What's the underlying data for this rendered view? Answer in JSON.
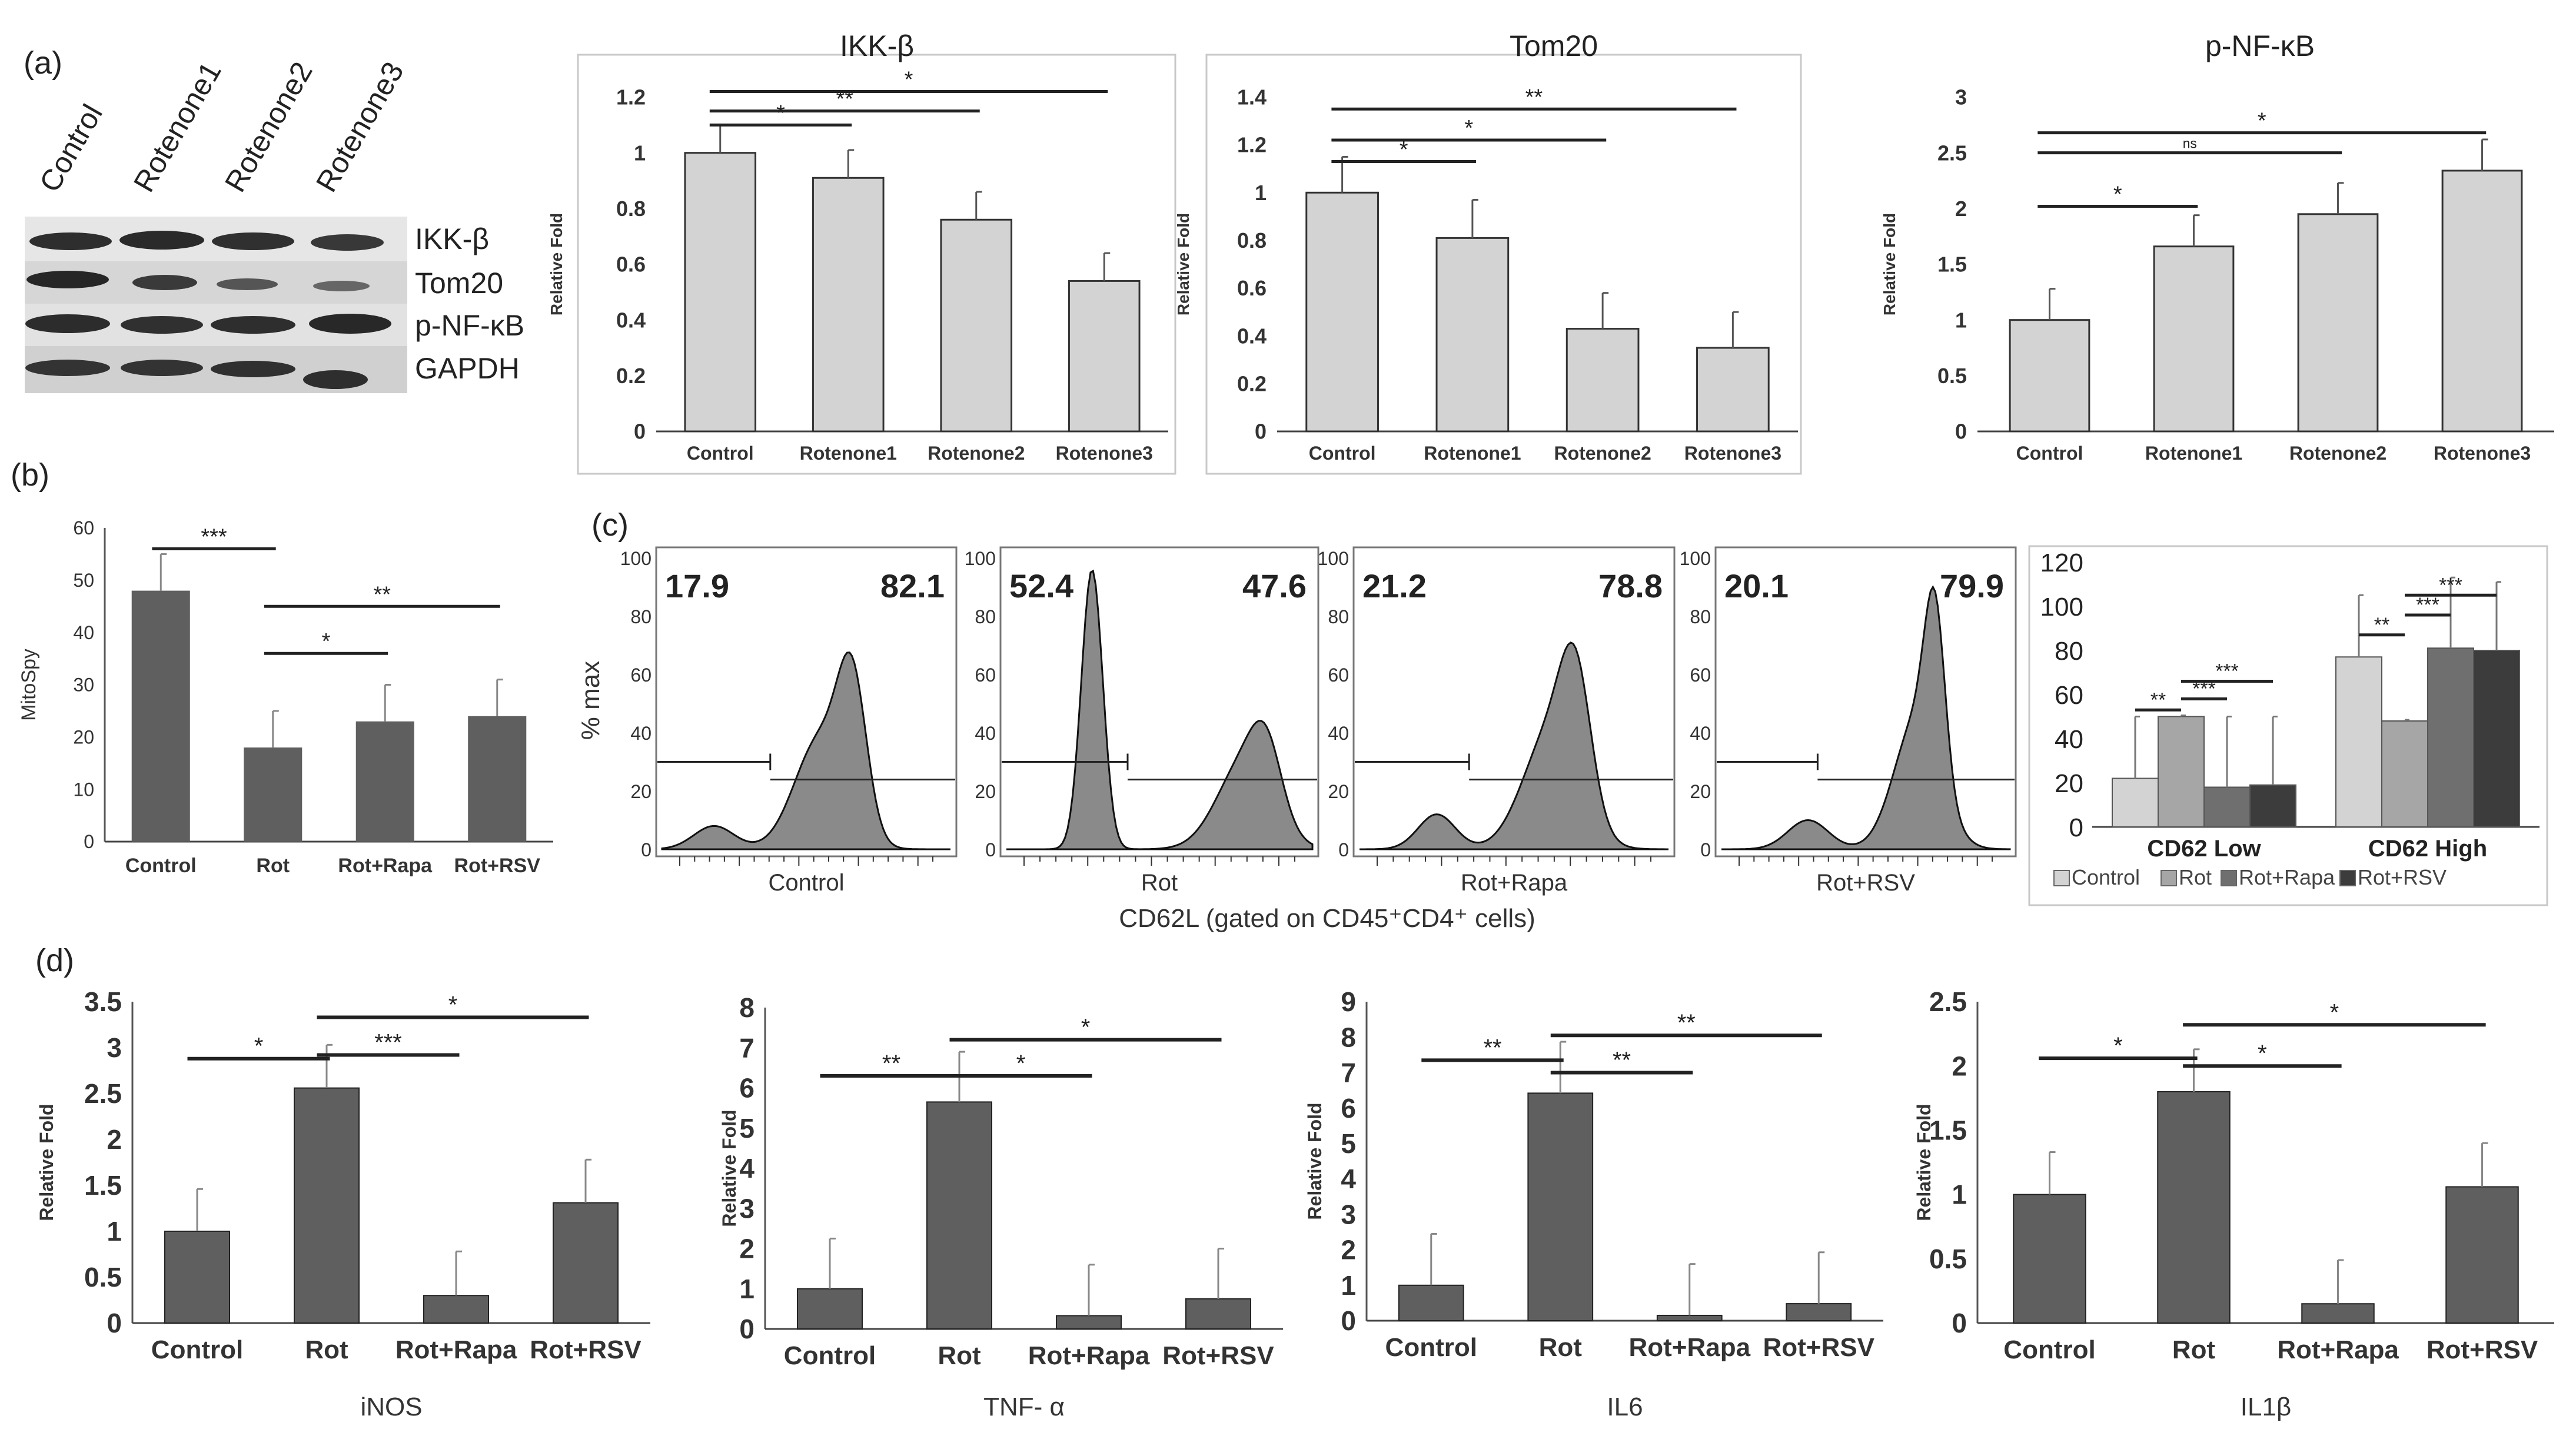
{
  "figure": {
    "panel_labels": {
      "a": "(a)",
      "b": "(b)",
      "c": "(c)",
      "d": "(d)"
    },
    "colors": {
      "light_bar": "#d3d3d3",
      "dark_bar": "#5f5f5f",
      "ink": "#222222",
      "box": "#c8c8c8",
      "histogram_fill": "#8a8a8a",
      "blot_bg": "#d9d9d9",
      "blot_band": "#2a2a2a"
    }
  },
  "western_blot": {
    "lane_labels": [
      "Control",
      "Rotenone1",
      "Rotenone2",
      "Rotenone3"
    ],
    "band_labels": [
      "IKK-β",
      "Tom20",
      "p-NF-κB",
      "GAPDH"
    ]
  },
  "flow": {
    "y_label": "% max",
    "y_ticks": [
      "0",
      "20",
      "40",
      "60",
      "80",
      "100"
    ],
    "x_axis_label": "CD62L (gated on CD45⁺CD4⁺ cells)",
    "panels": [
      {
        "name": "Control",
        "low_pct": "17.9",
        "high_pct": "82.1"
      },
      {
        "name": "Rot",
        "low_pct": "52.4",
        "high_pct": "47.6"
      },
      {
        "name": "Rot+Rapa",
        "low_pct": "21.2",
        "high_pct": "78.8"
      },
      {
        "name": "Rot+RSV",
        "low_pct": "20.1",
        "high_pct": "79.9"
      }
    ]
  },
  "chart_data": [
    {
      "id": "ikkb",
      "type": "bar",
      "title": "IKK-β",
      "categories": [
        "Control",
        "Rotenone1",
        "Rotenone2",
        "Rotenone3"
      ],
      "values": [
        1.0,
        0.91,
        0.76,
        0.54
      ],
      "errors": [
        0.1,
        0.1,
        0.1,
        0.1
      ],
      "ylabel": "Relative Fold",
      "ylim": [
        0,
        1.2
      ],
      "yticks": [
        0,
        0.2,
        0.4,
        0.6,
        0.8,
        1,
        1.2
      ],
      "sig": [
        {
          "from": 0,
          "to": 1,
          "label": "*",
          "level": 1.1
        },
        {
          "from": 0,
          "to": 2,
          "label": "**",
          "level": 1.15
        },
        {
          "from": 0,
          "to": 3,
          "label": "*",
          "level": 1.22
        }
      ]
    },
    {
      "id": "tom20",
      "type": "bar",
      "title": "Tom20",
      "categories": [
        "Control",
        "Rotenone1",
        "Rotenone2",
        "Rotenone3"
      ],
      "values": [
        1.0,
        0.81,
        0.43,
        0.35
      ],
      "errors": [
        0.15,
        0.16,
        0.15,
        0.15
      ],
      "ylabel": "Relative Fold",
      "ylim": [
        0,
        1.4
      ],
      "yticks": [
        0,
        0.2,
        0.4,
        0.6,
        0.8,
        1,
        1.2,
        1.4
      ],
      "sig": [
        {
          "from": 0,
          "to": 1,
          "label": "*",
          "level": 1.13
        },
        {
          "from": 0,
          "to": 2,
          "label": "*",
          "level": 1.22
        },
        {
          "from": 0,
          "to": 3,
          "label": "**",
          "level": 1.35
        }
      ]
    },
    {
      "id": "pnfkb",
      "type": "bar",
      "title": "p-NF-κB",
      "categories": [
        "Control",
        "Rotenone1",
        "Rotenone2",
        "Rotenone3"
      ],
      "values": [
        1.0,
        1.66,
        1.95,
        2.34
      ],
      "errors": [
        0.28,
        0.28,
        0.28,
        0.28
      ],
      "ylabel": "Relative Fold",
      "ylim": [
        0,
        3
      ],
      "yticks": [
        0,
        0.5,
        1,
        1.5,
        2,
        2.5,
        3
      ],
      "sig": [
        {
          "from": 0,
          "to": 1,
          "label": "*",
          "level": 2.02
        },
        {
          "from": 0,
          "to": 2,
          "label": "ns",
          "level": 2.5
        },
        {
          "from": 0,
          "to": 3,
          "label": "*",
          "level": 2.68
        }
      ]
    },
    {
      "id": "mitospy",
      "type": "bar",
      "title": "",
      "categories": [
        "Control",
        "Rot",
        "Rot+Rapa",
        "Rot+RSV"
      ],
      "values": [
        48,
        18,
        23,
        24
      ],
      "errors": [
        7,
        7,
        7,
        7
      ],
      "ylabel": "MitoSpy",
      "ylim": [
        0,
        60
      ],
      "yticks": [
        0,
        10,
        20,
        30,
        40,
        50,
        60
      ],
      "sig": [
        {
          "from": 0,
          "to": 1,
          "label": "***",
          "level": 56
        },
        {
          "from": 1,
          "to": 2,
          "label": "*",
          "level": 36
        },
        {
          "from": 1,
          "to": 3,
          "label": "**",
          "level": 45
        }
      ]
    },
    {
      "id": "cd62",
      "type": "bar",
      "title": "",
      "categories": [
        "CD62 Low",
        "CD62 High"
      ],
      "series": [
        {
          "name": "Control",
          "values": [
            22,
            77
          ],
          "errors": [
            28,
            28
          ],
          "color": "#d3d3d3"
        },
        {
          "name": "Rot",
          "values": [
            50,
            48
          ],
          "errors": [
            0.5,
            0.5
          ],
          "color": "#a6a6a6"
        },
        {
          "name": "Rot+Rapa",
          "values": [
            18,
            81
          ],
          "errors": [
            32,
            32
          ],
          "color": "#6f6f6f"
        },
        {
          "name": "Rot+RSV",
          "values": [
            19,
            80
          ],
          "errors": [
            31,
            31
          ],
          "color": "#3c3c3c"
        }
      ],
      "ylim": [
        0,
        120
      ],
      "yticks": [
        0,
        20,
        40,
        60,
        80,
        100,
        120
      ],
      "sig": [
        {
          "group": 0,
          "from": 0,
          "to": 1,
          "label": "**",
          "level": 53
        },
        {
          "group": 0,
          "from": 1,
          "to": 2,
          "label": "***",
          "level": 58
        },
        {
          "group": 0,
          "from": 1,
          "to": 3,
          "label": "***",
          "level": 66
        },
        {
          "group": 1,
          "from": 0,
          "to": 1,
          "label": "**",
          "level": 87
        },
        {
          "group": 1,
          "from": 1,
          "to": 2,
          "label": "***",
          "level": 96
        },
        {
          "group": 1,
          "from": 1,
          "to": 3,
          "label": "***",
          "level": 105
        }
      ],
      "legend": "bottom"
    },
    {
      "id": "inos",
      "type": "bar",
      "title": "",
      "xtitle": "iNOS",
      "categories": [
        "Control",
        "Rot",
        "Rot+Rapa",
        "Rot+RSV"
      ],
      "values": [
        1.0,
        2.56,
        0.3,
        1.31
      ],
      "errors": [
        0.46,
        0.47,
        0.48,
        0.47
      ],
      "ylabel": "Relative Fold",
      "ylim": [
        0,
        3.5
      ],
      "yticks": [
        0,
        0.5,
        1,
        1.5,
        2,
        2.5,
        3,
        3.5
      ],
      "sig": [
        {
          "from": 0,
          "to": 1,
          "label": "*",
          "level": 2.88
        },
        {
          "from": 1,
          "to": 2,
          "label": "***",
          "level": 2.92
        },
        {
          "from": 1,
          "to": 3,
          "label": "*",
          "level": 3.33
        }
      ]
    },
    {
      "id": "tnfa",
      "type": "bar",
      "title": "",
      "xtitle": "TNF- α",
      "categories": [
        "Control",
        "Rot",
        "Rot+Rapa",
        "Rot+RSV"
      ],
      "values": [
        1.0,
        5.65,
        0.33,
        0.75
      ],
      "errors": [
        1.25,
        1.25,
        1.27,
        1.25
      ],
      "ylabel": "Relative Fold",
      "ylim": [
        0,
        8
      ],
      "yticks": [
        0,
        1,
        2,
        3,
        4,
        5,
        6,
        7,
        8
      ],
      "sig": [
        {
          "from": 0,
          "to": 1,
          "label": "**",
          "level": 6.3
        },
        {
          "from": 1,
          "to": 2,
          "label": "*",
          "level": 6.3
        },
        {
          "from": 1,
          "to": 3,
          "label": "*",
          "level": 7.2
        }
      ]
    },
    {
      "id": "il6",
      "type": "bar",
      "title": "",
      "xtitle": "IL6",
      "categories": [
        "Control",
        "Rot",
        "Rot+Rapa",
        "Rot+RSV"
      ],
      "values": [
        1.0,
        6.42,
        0.15,
        0.48
      ],
      "errors": [
        1.45,
        1.45,
        1.45,
        1.45
      ],
      "ylabel": "Relative Fold",
      "ylim": [
        0,
        9
      ],
      "yticks": [
        0,
        1,
        2,
        3,
        4,
        5,
        6,
        7,
        8,
        9
      ],
      "sig": [
        {
          "from": 0,
          "to": 1,
          "label": "**",
          "level": 7.35
        },
        {
          "from": 1,
          "to": 2,
          "label": "**",
          "level": 7.0
        },
        {
          "from": 1,
          "to": 3,
          "label": "**",
          "level": 8.05
        }
      ]
    },
    {
      "id": "il1b",
      "type": "bar",
      "title": "",
      "xtitle": "IL1β",
      "categories": [
        "Control",
        "Rot",
        "Rot+Rapa",
        "Rot+RSV"
      ],
      "values": [
        1.0,
        1.8,
        0.15,
        1.06
      ],
      "errors": [
        0.33,
        0.33,
        0.34,
        0.34
      ],
      "ylabel": "Relative Fold",
      "ylim": [
        0,
        2.5
      ],
      "yticks": [
        0,
        0.5,
        1,
        1.5,
        2,
        2.5
      ],
      "sig": [
        {
          "from": 0,
          "to": 1,
          "label": "*",
          "level": 2.06
        },
        {
          "from": 1,
          "to": 2,
          "label": "*",
          "level": 2.0
        },
        {
          "from": 1,
          "to": 3,
          "label": "*",
          "level": 2.32
        }
      ]
    }
  ]
}
